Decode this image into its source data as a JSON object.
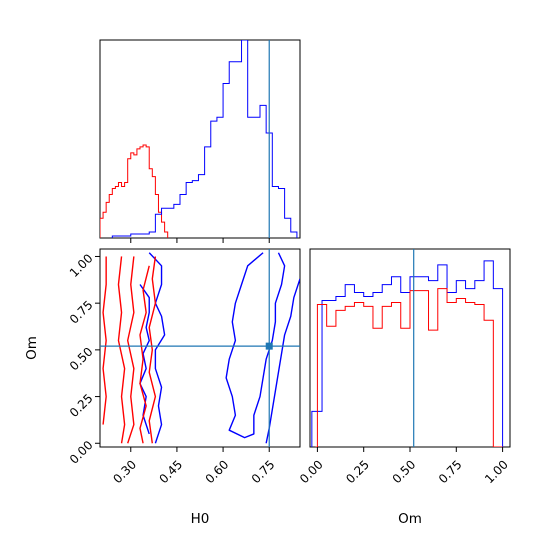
{
  "chart_data": {
    "type": "corner",
    "colors": {
      "series_a": "#0000ff",
      "series_b": "#ff0000",
      "truth": "#1f77b4"
    },
    "truth": {
      "H0": 0.75,
      "Om": 0.52
    },
    "panels": [
      {
        "id": "hist-H0",
        "type": "histogram-step",
        "xlim": [
          0.2,
          0.85
        ],
        "xticks": [
          0.3,
          0.45,
          0.6,
          0.75
        ],
        "ylim": [
          0,
          1.0
        ],
        "truth_vline": 0.75,
        "series": [
          {
            "color": "#ff0000",
            "edges": [
              0.2,
              0.21,
              0.22,
              0.23,
              0.24,
              0.25,
              0.26,
              0.27,
              0.28,
              0.29,
              0.3,
              0.31,
              0.32,
              0.33,
              0.34,
              0.35,
              0.36,
              0.37,
              0.38,
              0.39,
              0.4,
              0.41,
              0.42
            ],
            "counts": [
              0.1,
              0.13,
              0.18,
              0.22,
              0.25,
              0.26,
              0.28,
              0.26,
              0.28,
              0.4,
              0.43,
              0.42,
              0.45,
              0.46,
              0.47,
              0.46,
              0.35,
              0.31,
              0.22,
              0.13,
              0.08,
              0.03
            ]
          },
          {
            "color": "#0000ff",
            "edges": [
              0.24,
              0.3,
              0.36,
              0.38,
              0.4,
              0.42,
              0.44,
              0.46,
              0.48,
              0.5,
              0.52,
              0.54,
              0.56,
              0.58,
              0.6,
              0.62,
              0.64,
              0.66,
              0.68,
              0.7,
              0.72,
              0.74,
              0.76,
              0.78,
              0.8,
              0.82,
              0.84
            ],
            "counts": [
              0.01,
              0.02,
              0.03,
              0.12,
              0.15,
              0.15,
              0.17,
              0.22,
              0.28,
              0.29,
              0.32,
              0.46,
              0.59,
              0.61,
              0.78,
              0.89,
              0.89,
              1.0,
              0.61,
              0.61,
              0.67,
              0.53,
              0.26,
              0.25,
              0.1,
              0.03
            ]
          }
        ]
      },
      {
        "id": "contour-H0-Om",
        "type": "contour",
        "xlabel": "H0",
        "ylabel": "Om",
        "xlim": [
          0.2,
          0.85
        ],
        "ylim": [
          -0.02,
          1.04
        ],
        "xticks": [
          0.3,
          0.45,
          0.6,
          0.75
        ],
        "yticks": [
          0.0,
          0.25,
          0.5,
          0.75,
          1.0
        ],
        "xtick_labels": [
          "0.30",
          "0.45",
          "0.60",
          "0.75"
        ],
        "ytick_labels": [
          "0.00",
          "0.25",
          "0.50",
          "0.75",
          "1.00"
        ],
        "truth_point": [
          0.75,
          0.52
        ],
        "series": [
          {
            "color": "#0000ff",
            "contours": [
              [
                [
                  0.36,
                  1.02
                ],
                [
                  0.4,
                  0.95
                ],
                [
                  0.4,
                  0.85
                ],
                [
                  0.38,
                  0.75
                ],
                [
                  0.4,
                  0.68
                ],
                [
                  0.41,
                  0.58
                ],
                [
                  0.38,
                  0.5
                ],
                [
                  0.38,
                  0.4
                ],
                [
                  0.4,
                  0.3
                ],
                [
                  0.39,
                  0.2
                ],
                [
                  0.4,
                  0.1
                ],
                [
                  0.38,
                  0.0
                ]
              ],
              [
                [
                  0.33,
                  0.85
                ],
                [
                  0.36,
                  0.78
                ],
                [
                  0.36,
                  0.7
                ],
                [
                  0.35,
                  0.62
                ],
                [
                  0.36,
                  0.55
                ],
                [
                  0.34,
                  0.48
                ],
                [
                  0.35,
                  0.4
                ],
                [
                  0.33,
                  0.32
                ],
                [
                  0.35,
                  0.25
                ],
                [
                  0.34,
                  0.15
                ],
                [
                  0.36,
                  0.05
                ]
              ],
              [
                [
                  0.73,
                  1.02
                ],
                [
                  0.68,
                  0.95
                ],
                [
                  0.66,
                  0.85
                ],
                [
                  0.64,
                  0.75
                ],
                [
                  0.63,
                  0.65
                ],
                [
                  0.64,
                  0.55
                ],
                [
                  0.62,
                  0.45
                ],
                [
                  0.61,
                  0.35
                ],
                [
                  0.63,
                  0.25
                ],
                [
                  0.64,
                  0.15
                ],
                [
                  0.62,
                  0.07
                ],
                [
                  0.67,
                  0.03
                ],
                [
                  0.7,
                  0.05
                ],
                [
                  0.7,
                  0.15
                ],
                [
                  0.72,
                  0.25
                ],
                [
                  0.73,
                  0.35
                ],
                [
                  0.74,
                  0.45
                ],
                [
                  0.76,
                  0.55
                ],
                [
                  0.77,
                  0.65
                ],
                [
                  0.77,
                  0.75
                ],
                [
                  0.79,
                  0.85
                ],
                [
                  0.8,
                  0.95
                ],
                [
                  0.78,
                  1.02
                ]
              ],
              [
                [
                  0.85,
                  0.88
                ],
                [
                  0.83,
                  0.78
                ],
                [
                  0.82,
                  0.68
                ],
                [
                  0.8,
                  0.58
                ],
                [
                  0.79,
                  0.48
                ],
                [
                  0.78,
                  0.38
                ],
                [
                  0.77,
                  0.28
                ],
                [
                  0.76,
                  0.18
                ],
                [
                  0.75,
                  0.08
                ],
                [
                  0.74,
                  0.0
                ]
              ]
            ]
          },
          {
            "color": "#ff0000",
            "contours": [
              [
                [
                  0.22,
                  1.0
                ],
                [
                  0.22,
                  0.85
                ],
                [
                  0.21,
                  0.7
                ],
                [
                  0.22,
                  0.55
                ],
                [
                  0.21,
                  0.4
                ],
                [
                  0.22,
                  0.25
                ],
                [
                  0.21,
                  0.1
                ]
              ],
              [
                [
                  0.27,
                  1.0
                ],
                [
                  0.26,
                  0.85
                ],
                [
                  0.27,
                  0.7
                ],
                [
                  0.26,
                  0.55
                ],
                [
                  0.28,
                  0.4
                ],
                [
                  0.27,
                  0.25
                ],
                [
                  0.28,
                  0.1
                ],
                [
                  0.27,
                  0.0
                ]
              ],
              [
                [
                  0.31,
                  1.0
                ],
                [
                  0.3,
                  0.85
                ],
                [
                  0.31,
                  0.7
                ],
                [
                  0.29,
                  0.55
                ],
                [
                  0.31,
                  0.4
                ],
                [
                  0.3,
                  0.25
                ],
                [
                  0.31,
                  0.1
                ],
                [
                  0.29,
                  0.0
                ]
              ],
              [
                [
                  0.36,
                  0.95
                ],
                [
                  0.34,
                  0.82
                ],
                [
                  0.35,
                  0.7
                ],
                [
                  0.33,
                  0.58
                ],
                [
                  0.34,
                  0.45
                ],
                [
                  0.33,
                  0.32
                ],
                [
                  0.35,
                  0.2
                ],
                [
                  0.33,
                  0.08
                ],
                [
                  0.34,
                  0.0
                ]
              ],
              [
                [
                  0.38,
                  1.0
                ],
                [
                  0.37,
                  0.88
                ],
                [
                  0.38,
                  0.75
                ],
                [
                  0.36,
                  0.62
                ],
                [
                  0.37,
                  0.5
                ],
                [
                  0.36,
                  0.38
                ],
                [
                  0.38,
                  0.25
                ],
                [
                  0.36,
                  0.12
                ],
                [
                  0.37,
                  0.0
                ]
              ]
            ]
          }
        ]
      },
      {
        "id": "hist-Om",
        "type": "histogram-step",
        "xlabel": "Om",
        "xlim": [
          -0.04,
          1.04
        ],
        "xticks": [
          0.0,
          0.25,
          0.5,
          0.75,
          1.0
        ],
        "xtick_labels": [
          "0.00",
          "0.25",
          "0.50",
          "0.75",
          "1.00"
        ],
        "ylim": [
          0,
          1.0
        ],
        "truth_vline": 0.52,
        "series": [
          {
            "color": "#0000ff",
            "edges": [
              -0.03,
              0.0,
              0.025,
              0.05,
              0.1,
              0.15,
              0.2,
              0.25,
              0.3,
              0.35,
              0.4,
              0.45,
              0.5,
              0.55,
              0.6,
              0.65,
              0.7,
              0.75,
              0.8,
              0.85,
              0.9,
              0.95,
              1.0
            ],
            "counts": [
              0.18,
              0.18,
              0.74,
              0.74,
              0.76,
              0.82,
              0.78,
              0.76,
              0.78,
              0.82,
              0.86,
              0.78,
              0.86,
              0.86,
              0.84,
              0.92,
              0.78,
              0.84,
              0.8,
              0.84,
              0.94,
              0.8
            ]
          },
          {
            "color": "#ff0000",
            "edges": [
              -0.01,
              0.0,
              0.025,
              0.05,
              0.1,
              0.15,
              0.2,
              0.25,
              0.3,
              0.35,
              0.4,
              0.45,
              0.5,
              0.55,
              0.6,
              0.65,
              0.7,
              0.75,
              0.8,
              0.85,
              0.9,
              0.95,
              1.0
            ],
            "counts": [
              0.0,
              0.72,
              0.72,
              0.61,
              0.69,
              0.71,
              0.73,
              0.71,
              0.6,
              0.71,
              0.73,
              0.6,
              0.79,
              0.79,
              0.59,
              0.8,
              0.73,
              0.75,
              0.73,
              0.72,
              0.64,
              0.0
            ]
          }
        ]
      }
    ]
  }
}
